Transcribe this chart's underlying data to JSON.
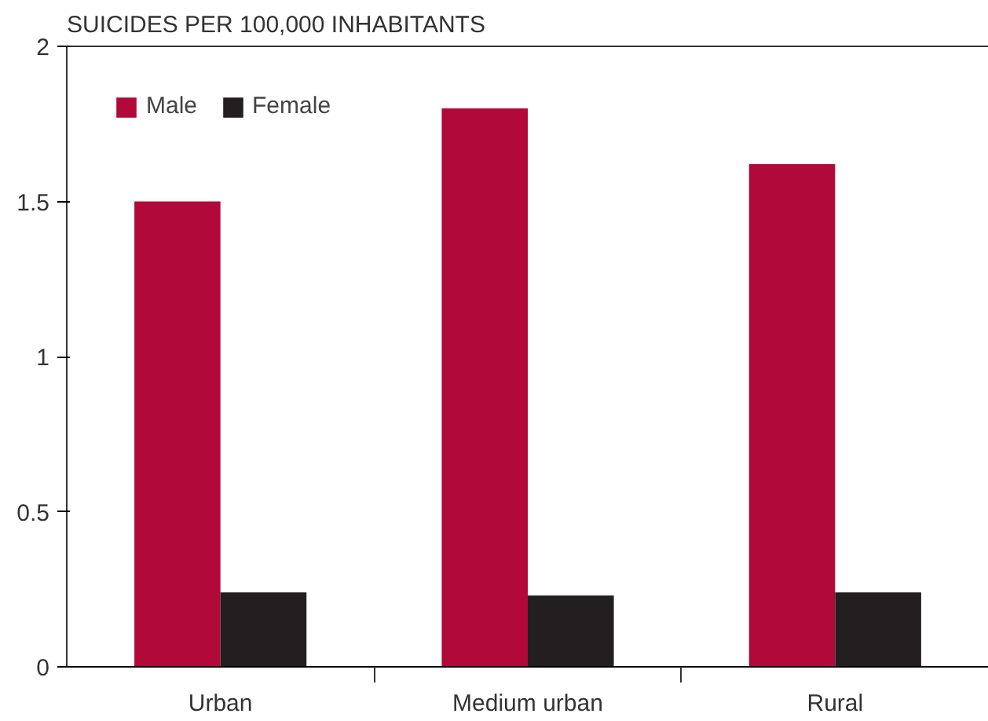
{
  "chart_data": {
    "type": "bar",
    "title": "SUICIDES PER 100,000 INHABITANTS",
    "categories": [
      "Urban",
      "Medium urban",
      "Rural"
    ],
    "series": [
      {
        "name": "Male",
        "color": "#b0093a",
        "values": [
          1.5,
          1.8,
          1.62
        ]
      },
      {
        "name": "Female",
        "color": "#231f20",
        "values": [
          0.24,
          0.23,
          0.24
        ]
      }
    ],
    "ylim": [
      0,
      2
    ],
    "yticks": [
      0,
      0.5,
      1,
      1.5,
      2
    ],
    "grid": false,
    "legend": "top left"
  }
}
